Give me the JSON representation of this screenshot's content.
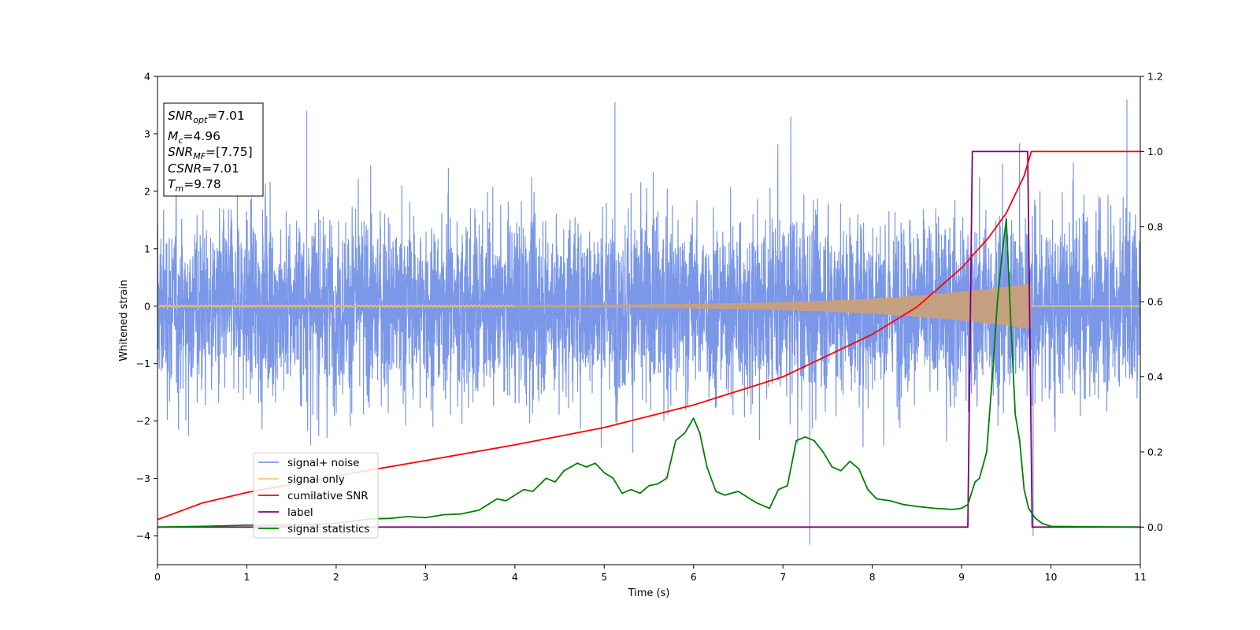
{
  "chart_data": {
    "type": "line",
    "xlabel": "Time (s)",
    "ylabel": "Whitened strain",
    "xlim": [
      0,
      11
    ],
    "ylim": [
      -4.5,
      4
    ],
    "y2lim": [
      -0.1,
      1.2
    ],
    "x_ticks": [
      0,
      1,
      2,
      3,
      4,
      5,
      6,
      7,
      8,
      9,
      10,
      11
    ],
    "y_ticks": [
      -4,
      -3,
      -2,
      -1,
      0,
      1,
      2,
      3,
      4
    ],
    "y_tick_labels": [
      "−4",
      "−3",
      "−2",
      "−1",
      "0",
      "1",
      "2",
      "3",
      "4"
    ],
    "y2_ticks": [
      0.0,
      0.2,
      0.4,
      0.6,
      0.8,
      1.0,
      1.2
    ],
    "y2_tick_labels": [
      "0.0",
      "0.2",
      "0.4",
      "0.6",
      "0.8",
      "1.0",
      "1.2"
    ],
    "grid": false,
    "legend_position": "lower-left",
    "annotation": {
      "snr_opt": {
        "symbol": "SNR",
        "sub": "opt",
        "value": "=7.01"
      },
      "mc": {
        "symbol": "M",
        "sub": "c",
        "value": "=4.96"
      },
      "snr_mf": {
        "symbol": "SNR",
        "sub": "MF",
        "value": "=[7.75]"
      },
      "csnr": {
        "symbol": "CSNR",
        "value": "=7.01"
      },
      "tm": {
        "symbol": "T",
        "sub": "m",
        "value": "=9.78"
      }
    },
    "series": [
      {
        "name": "signal+ noise",
        "axis": "left",
        "color": "#7795e8",
        "description_values": {
          "envelope_typical": [
            -2.0,
            2.0
          ],
          "notable_peaks": [
            [
              1.67,
              3.4
            ],
            [
              5.12,
              3.55
            ],
            [
              7.3,
              -4.15
            ],
            [
              10.85,
              3.6
            ],
            [
              9.8,
              -4.0
            ]
          ]
        }
      },
      {
        "name": "signal only",
        "axis": "left",
        "color": "#f5c878",
        "chirp": {
          "start_time": 0.0,
          "merger_time": 9.78,
          "start_amplitude": 0.02,
          "peak_amplitude": 0.4
        }
      },
      {
        "name": "cumilative SNR",
        "axis": "right",
        "color": "#ff0000",
        "x": [
          0.0,
          0.5,
          1.0,
          2.0,
          3.0,
          4.0,
          5.0,
          6.0,
          7.0,
          8.0,
          8.5,
          9.0,
          9.3,
          9.5,
          9.7,
          9.78,
          11.0
        ],
        "values": [
          0.02,
          0.064,
          0.092,
          0.136,
          0.177,
          0.219,
          0.265,
          0.325,
          0.4,
          0.513,
          0.586,
          0.69,
          0.77,
          0.836,
          0.935,
          1.0,
          1.0
        ]
      },
      {
        "name": "label",
        "axis": "right",
        "color": "#800080",
        "x": [
          0.0,
          9.07,
          9.12,
          9.74,
          9.79,
          11.0
        ],
        "values": [
          0.0,
          0.0,
          1.0,
          1.0,
          0.0,
          0.0
        ]
      },
      {
        "name": "signal statistics",
        "axis": "right",
        "color": "#008000",
        "x": [
          0.0,
          0.5,
          1.0,
          1.5,
          2.0,
          2.4,
          2.6,
          2.8,
          3.0,
          3.2,
          3.4,
          3.6,
          3.8,
          3.9,
          4.1,
          4.2,
          4.35,
          4.45,
          4.55,
          4.7,
          4.8,
          4.9,
          5.0,
          5.1,
          5.2,
          5.3,
          5.4,
          5.5,
          5.6,
          5.7,
          5.8,
          5.9,
          6.0,
          6.07,
          6.15,
          6.25,
          6.35,
          6.5,
          6.7,
          6.85,
          6.95,
          7.05,
          7.15,
          7.25,
          7.35,
          7.45,
          7.55,
          7.65,
          7.75,
          7.85,
          7.95,
          8.05,
          8.2,
          8.35,
          8.5,
          8.7,
          8.9,
          9.0,
          9.07,
          9.15,
          9.2,
          9.28,
          9.35,
          9.4,
          9.45,
          9.5,
          9.55,
          9.6,
          9.65,
          9.7,
          9.75,
          9.82,
          9.9,
          10.0,
          10.3,
          11.0
        ],
        "values": [
          0.0,
          0.002,
          0.005,
          0.005,
          0.01,
          0.022,
          0.023,
          0.028,
          0.025,
          0.033,
          0.035,
          0.045,
          0.075,
          0.07,
          0.1,
          0.095,
          0.13,
          0.12,
          0.15,
          0.17,
          0.16,
          0.17,
          0.145,
          0.13,
          0.09,
          0.1,
          0.09,
          0.11,
          0.115,
          0.13,
          0.23,
          0.25,
          0.29,
          0.25,
          0.16,
          0.095,
          0.085,
          0.095,
          0.065,
          0.05,
          0.1,
          0.11,
          0.23,
          0.24,
          0.23,
          0.2,
          0.16,
          0.15,
          0.175,
          0.155,
          0.1,
          0.075,
          0.07,
          0.06,
          0.055,
          0.05,
          0.047,
          0.05,
          0.06,
          0.12,
          0.13,
          0.2,
          0.42,
          0.6,
          0.72,
          0.82,
          0.55,
          0.3,
          0.23,
          0.1,
          0.05,
          0.025,
          0.01,
          0.002,
          0.001,
          0.0
        ]
      }
    ]
  }
}
